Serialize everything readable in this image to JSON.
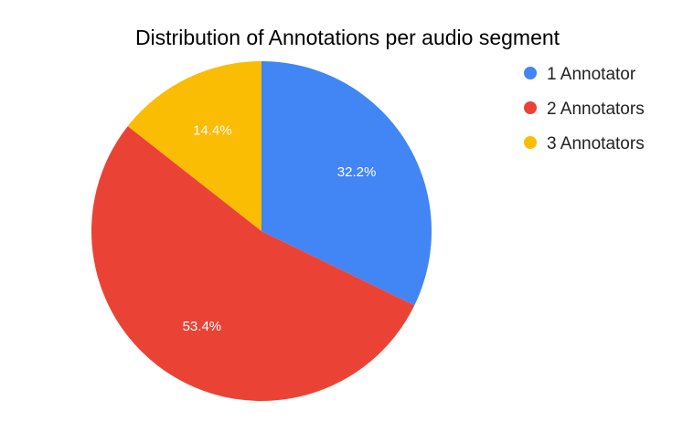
{
  "chart_data": {
    "type": "pie",
    "title": "Distribution of Annotations per audio segment",
    "slices": [
      {
        "label": "1 Annotator",
        "value": 32.2,
        "display": "32.2%",
        "color": "#4285f4"
      },
      {
        "label": "2 Annotators",
        "value": 53.4,
        "display": "53.4%",
        "color": "#ea4335"
      },
      {
        "label": "3 Annotators",
        "value": 14.4,
        "display": "14.4%",
        "color": "#fbbc04"
      }
    ],
    "legend_position": "right",
    "start_angle": "top",
    "direction": "clockwise"
  }
}
